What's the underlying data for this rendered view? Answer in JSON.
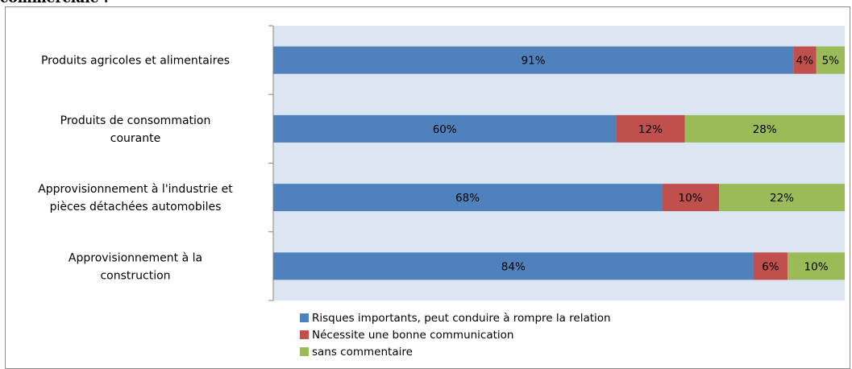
{
  "title_fragment": "commerciale :",
  "chart_data": {
    "type": "bar",
    "orientation": "horizontal",
    "stacked": true,
    "percent": true,
    "categories": [
      [
        "Produits agricoles et alimentaires"
      ],
      [
        "Produits de consommation",
        "courante"
      ],
      [
        "Approvisionnement à l'industrie et",
        "pièces détachées automobiles"
      ],
      [
        "Approvisionnement à la",
        "construction"
      ]
    ],
    "series": [
      {
        "name": "Risques importants,  peut conduire à rompre la relation",
        "color": "#4f81bd",
        "values": [
          91,
          60,
          68,
          84
        ],
        "labels": [
          "91%",
          "60%",
          "68%",
          "84%"
        ]
      },
      {
        "name": "Nécessite une bonne communication",
        "color": "#c0504d",
        "values": [
          4,
          12,
          10,
          6
        ],
        "labels": [
          "4%",
          "12%",
          "10%",
          "6%"
        ]
      },
      {
        "name": "sans commentaire",
        "color": "#9bbb59",
        "values": [
          5,
          28,
          22,
          10
        ],
        "labels": [
          "5%",
          "28%",
          "22%",
          "10%"
        ]
      }
    ],
    "xlim": [
      0,
      100
    ],
    "grid": false,
    "legend_position": "bottom"
  }
}
